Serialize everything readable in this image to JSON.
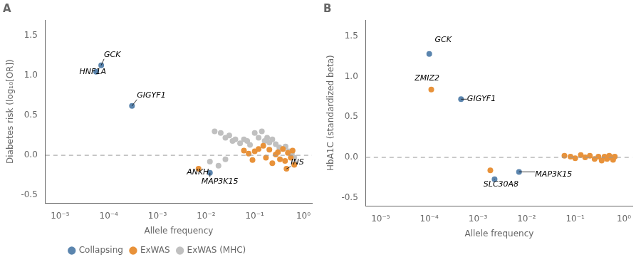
{
  "chart_data": [
    {
      "type": "scatter",
      "title": "A",
      "log": "x",
      "grid": false,
      "legend": "bottom",
      "xlabel": "Allele frequency",
      "ylabel": "Diabetes risk (log₁₀[OR])",
      "xlim": [
        5e-06,
        1.5
      ],
      "xticks": [
        {
          "value": 1e-05,
          "label": "10⁻⁵"
        },
        {
          "value": 0.0001,
          "label": "10⁻⁴"
        },
        {
          "value": 0.001,
          "label": "10⁻³"
        },
        {
          "value": 0.01,
          "label": "10⁻²"
        },
        {
          "value": 0.1,
          "label": "10⁻¹"
        },
        {
          "value": 1,
          "label": "10⁰"
        }
      ],
      "ylim": [
        -0.6,
        1.7
      ],
      "yticks": [
        -0.5,
        {
          "value": 0,
          "label": "0.0"
        },
        0.5,
        {
          "value": 1,
          "label": "1.0"
        },
        1.5
      ],
      "hlines": [
        0
      ],
      "series": [
        {
          "name": "Collapsing",
          "color": "#5b85ae",
          "x": [
            7e-05,
            5.5e-05,
            0.0003,
            0.012
          ],
          "values": [
            1.13,
            1.05,
            0.62,
            -0.22
          ]
        },
        {
          "name": "ExWAS",
          "color": "#e8923a",
          "x": [
            0.007,
            0.45,
            0.06,
            0.075,
            0.09,
            0.1,
            0.12,
            0.15,
            0.17,
            0.2,
            0.23,
            0.27,
            0.3,
            0.33,
            0.38,
            0.42,
            0.48,
            0.55,
            0.6,
            0.65
          ],
          "values": [
            -0.17,
            -0.17,
            0.06,
            0.02,
            -0.06,
            0.05,
            0.08,
            0.12,
            -0.03,
            0.07,
            -0.1,
            0.01,
            0.04,
            -0.05,
            0.08,
            -0.07,
            0.03,
            -0.03,
            0.06,
            -0.12
          ]
        },
        {
          "name": "ExWAS (MHC)",
          "color": "#c0c0c0",
          "x": [
            0.015,
            0.02,
            0.025,
            0.03,
            0.035,
            0.04,
            0.05,
            0.06,
            0.07,
            0.08,
            0.1,
            0.12,
            0.14,
            0.16,
            0.18,
            0.2,
            0.23,
            0.27,
            0.32,
            0.38,
            0.43,
            0.5,
            0.58,
            0.65,
            0.012,
            0.018,
            0.025
          ],
          "values": [
            0.3,
            0.28,
            0.22,
            0.25,
            0.18,
            0.2,
            0.15,
            0.2,
            0.18,
            0.13,
            0.28,
            0.22,
            0.3,
            0.18,
            0.22,
            0.16,
            0.2,
            0.14,
            0.1,
            0.08,
            0.11,
            0.05,
            0.02,
            -0.03,
            -0.08,
            -0.13,
            -0.05
          ]
        }
      ],
      "annotations": [
        {
          "text": "GCK",
          "x": 7e-05,
          "y": 1.13,
          "text_x": 8e-05,
          "text_y": 1.21,
          "arrow": true
        },
        {
          "text": "HNF1A",
          "x": 5.5e-05,
          "y": 1.05,
          "text_x": 2.5e-05,
          "text_y": 1.0,
          "arrow": false
        },
        {
          "text": "GIGYF1",
          "x": 0.0003,
          "y": 0.62,
          "text_x": 0.00038,
          "text_y": 0.7,
          "arrow": true
        },
        {
          "text": "MAP3K15",
          "x": 0.012,
          "y": -0.22,
          "text_x": 0.008,
          "text_y": -0.38,
          "arrow": true
        },
        {
          "text": "ANKH",
          "x": 0.007,
          "y": -0.17,
          "text_x": 0.004,
          "text_y": -0.26,
          "arrow": true
        },
        {
          "text": "INS",
          "x": 0.45,
          "y": -0.17,
          "text_x": 0.55,
          "text_y": -0.14,
          "arrow": true
        }
      ]
    },
    {
      "type": "scatter",
      "title": "B",
      "log": "x",
      "grid": false,
      "xlabel": "Allele frequency",
      "ylabel": "HbA1C (standardized beta)",
      "xlim": [
        5e-06,
        1.5
      ],
      "xticks": [
        {
          "value": 1e-05,
          "label": "10⁻⁵"
        },
        {
          "value": 0.0001,
          "label": "10⁻⁴"
        },
        {
          "value": 0.001,
          "label": "10⁻³"
        },
        {
          "value": 0.01,
          "label": "10⁻²"
        },
        {
          "value": 0.1,
          "label": "10⁻¹"
        },
        {
          "value": 1,
          "label": "10⁰"
        }
      ],
      "ylim": [
        -0.6,
        1.7
      ],
      "yticks": [
        -0.5,
        {
          "value": 0,
          "label": "0.0"
        },
        0.5,
        {
          "value": 1,
          "label": "1.0"
        },
        1.5
      ],
      "hlines": [
        0
      ],
      "series": [
        {
          "name": "Collapsing",
          "color": "#5b85ae",
          "x": [
            0.0001,
            0.00045,
            0.007,
            0.0022
          ],
          "values": [
            1.28,
            0.72,
            -0.18,
            -0.27
          ]
        },
        {
          "name": "ExWAS",
          "color": "#e8923a",
          "x": [
            0.00011,
            0.0018,
            0.06,
            0.08,
            0.1,
            0.13,
            0.16,
            0.2,
            0.25,
            0.3,
            0.35,
            0.4,
            0.45,
            0.5,
            0.55,
            0.6,
            0.65
          ],
          "values": [
            0.84,
            -0.16,
            0.02,
            0.01,
            -0.01,
            0.03,
            0.0,
            0.02,
            -0.02,
            0.01,
            -0.04,
            0.01,
            -0.02,
            0.02,
            0.0,
            -0.03,
            0.01
          ]
        },
        {
          "name": "ExWAS (MHC)",
          "color": "#c0c0c0",
          "x": [],
          "values": []
        }
      ],
      "annotations": [
        {
          "text": "GCK",
          "x": 0.0001,
          "y": 1.28,
          "text_x": 0.00013,
          "text_y": 1.4,
          "arrow": false
        },
        {
          "text": "GIGYF1",
          "x": 0.00045,
          "y": 0.72,
          "text_x": 0.0006,
          "text_y": 0.67,
          "arrow": true
        },
        {
          "text": "MAP3K15",
          "x": 0.007,
          "y": -0.18,
          "text_x": 0.015,
          "text_y": -0.26,
          "arrow": true
        },
        {
          "text": "SLC30A8",
          "x": 0.0022,
          "y": -0.27,
          "text_x": 0.0013,
          "text_y": -0.38,
          "arrow": true
        },
        {
          "text": "ZMIZ2",
          "x": 0.00011,
          "y": 0.84,
          "text_x": 5e-05,
          "text_y": 0.93,
          "arrow": false
        }
      ]
    }
  ]
}
